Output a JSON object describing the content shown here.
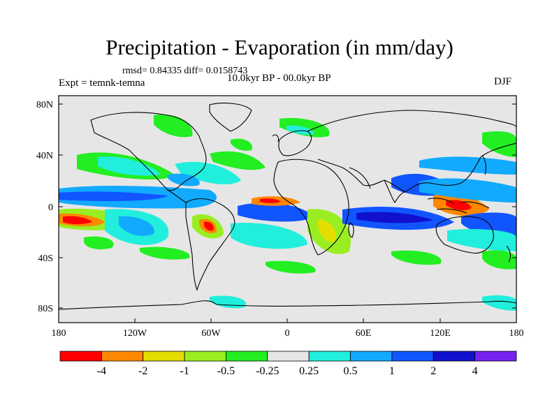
{
  "title": "Precipitation - Evaporation (in mm/day)",
  "stats": "rmsd= 0.84335  diff= 0.0158743",
  "experiment": "Expt = temnk-temna",
  "period": "10.0kyr BP - 00.0kyr BP",
  "season": "DJF",
  "lat_ticks": [
    "80N",
    "40N",
    "0",
    "40S",
    "80S"
  ],
  "lon_ticks": [
    "180",
    "120W",
    "60W",
    "0",
    "60E",
    "120E",
    "180"
  ],
  "colorbar": {
    "labels": [
      "-4",
      "-2",
      "-1",
      "-0.5",
      "-0.25",
      "0.25",
      "0.5",
      "1",
      "2",
      "4"
    ],
    "colors": [
      "#ff0000",
      "#ff8800",
      "#e6dd00",
      "#99ee22",
      "#22ee22",
      "#e6e6e6",
      "#22eedd",
      "#11aaff",
      "#1155ff",
      "#1111cc",
      "#7722ee"
    ]
  }
}
